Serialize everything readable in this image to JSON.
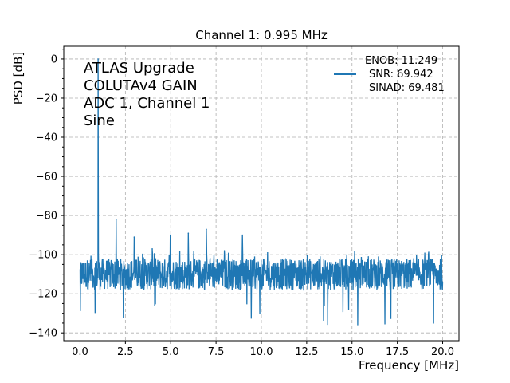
{
  "chart_data": {
    "type": "line",
    "title": "Channel 1: 0.995 MHz",
    "xlabel": "Frequency [MHz]",
    "ylabel": "PSD [dB]",
    "xlim": [
      -0.9,
      20.9
    ],
    "ylim": [
      -144,
      6.5
    ],
    "xticks": [
      0.0,
      2.5,
      5.0,
      7.5,
      10.0,
      12.5,
      15.0,
      17.5,
      20.0
    ],
    "xtick_labels": [
      "0.0",
      "2.5",
      "5.0",
      "7.5",
      "10.0",
      "12.5",
      "15.0",
      "17.5",
      "20.0"
    ],
    "yticks": [
      0,
      -20,
      -40,
      -60,
      -80,
      -100,
      -120,
      -140
    ],
    "ytick_labels": [
      "0",
      "−20",
      "−40",
      "−60",
      "−80",
      "−100",
      "−120",
      "−140"
    ],
    "grid": true,
    "legend_position": "top-right",
    "annotation_lines": [
      "ATLAS Upgrade",
      "COLUTAv4 GAIN",
      "ADC 1, Channel 1",
      "Sine"
    ],
    "legend_lines": [
      "ENOB: 11.249",
      "SNR: 69.942",
      "SINAD: 69.481"
    ],
    "series_color": "#1f77b4",
    "noise_floor": {
      "x_range": [
        0.0,
        20.0
      ],
      "mean_db": -110,
      "min_db": -137,
      "max_db": -98
    },
    "peaks": [
      {
        "x": 0.995,
        "y": 0
      },
      {
        "x": 1.99,
        "y": -82
      },
      {
        "x": 2.985,
        "y": -91
      },
      {
        "x": 3.98,
        "y": -97
      },
      {
        "x": 4.975,
        "y": -90
      },
      {
        "x": 5.97,
        "y": -89
      },
      {
        "x": 6.965,
        "y": -87
      },
      {
        "x": 7.96,
        "y": -98
      },
      {
        "x": 8.955,
        "y": -90
      }
    ]
  }
}
